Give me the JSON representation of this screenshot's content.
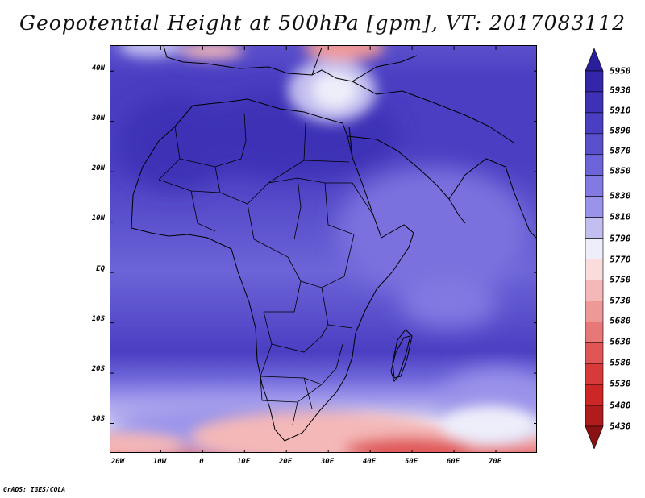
{
  "title": "Geopotential Height at 500hPa [gpm], VT: 2017083112",
  "credit": "GrADS: IGES/COLA",
  "map": {
    "variable": "Geopotential Height at 500hPa",
    "units": "gpm",
    "valid_time": "2017083112",
    "lat_labels": [
      "40N",
      "30N",
      "20N",
      "10N",
      "EQ",
      "10S",
      "20S",
      "30S"
    ],
    "lon_labels": [
      "20W",
      "10W",
      "0",
      "10E",
      "20E",
      "30E",
      "40E",
      "50E",
      "60E",
      "70E"
    ],
    "lat_values": [
      40,
      30,
      20,
      10,
      0,
      -10,
      -20,
      -30
    ],
    "lon_values": [
      -20,
      -10,
      0,
      10,
      20,
      30,
      40,
      50,
      60,
      70
    ],
    "lon_range": [
      -22,
      80
    ],
    "lat_range": [
      -36,
      45
    ]
  },
  "colorbar": {
    "levels": [
      "5950",
      "5930",
      "5910",
      "5890",
      "5870",
      "5850",
      "5830",
      "5810",
      "5790",
      "5770",
      "5750",
      "5730",
      "5680",
      "5630",
      "5580",
      "5530",
      "5480",
      "5430"
    ],
    "colors": [
      "#2a1f9a",
      "#3426a8",
      "#3e31b6",
      "#4a3ec2",
      "#5a50cc",
      "#6c64d8",
      "#8279e2",
      "#9a93ea",
      "#c2beef",
      "#eeeefa",
      "#fadcdc",
      "#f4b8b8",
      "#ee9898",
      "#e87878",
      "#e05656",
      "#d83a3a",
      "#cc2626",
      "#b01c1c",
      "#8a1212"
    ]
  }
}
